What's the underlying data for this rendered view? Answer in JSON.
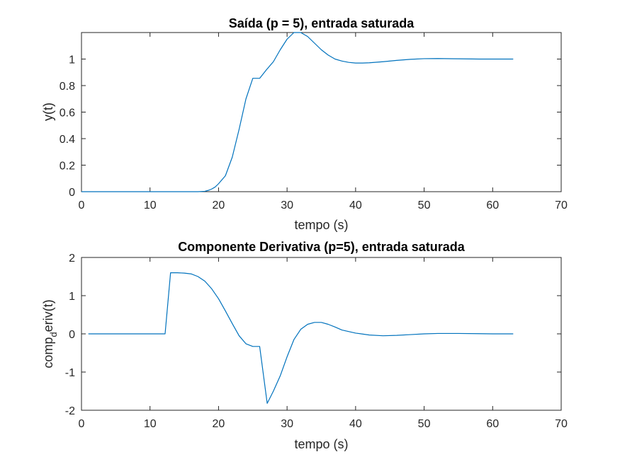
{
  "chart_data": [
    {
      "type": "line",
      "title": "Saída (p = 5), entrada saturada",
      "xlabel": "tempo (s)",
      "ylabel": "y(t)",
      "xlim": [
        0,
        70
      ],
      "ylim": [
        0,
        1.2
      ],
      "xticks": [
        0,
        10,
        20,
        30,
        40,
        50,
        60,
        70
      ],
      "yticks": [
        0,
        0.2,
        0.4,
        0.6,
        0.8,
        1
      ],
      "ytick_labels": [
        "0",
        "0.2",
        "0.4",
        "0.6",
        "0.8",
        "1"
      ],
      "grid": false,
      "series": [
        {
          "color": "#0072BD",
          "x": [
            0,
            5,
            10,
            15,
            17,
            18,
            18.5,
            19,
            19.5,
            20,
            21,
            22,
            23,
            24,
            25,
            26,
            27,
            28,
            29,
            30,
            31,
            32,
            33,
            34,
            35,
            36,
            37,
            38,
            39,
            40,
            41,
            42,
            44,
            46,
            48,
            50,
            52,
            55,
            58,
            60,
            63
          ],
          "y": [
            0,
            0,
            0,
            0,
            0,
            0.003,
            0.01,
            0.02,
            0.035,
            0.06,
            0.12,
            0.26,
            0.47,
            0.7,
            0.855,
            0.855,
            0.92,
            0.98,
            1.07,
            1.15,
            1.2,
            1.2,
            1.17,
            1.12,
            1.07,
            1.03,
            1.0,
            0.985,
            0.975,
            0.97,
            0.97,
            0.972,
            0.98,
            0.99,
            0.998,
            1.003,
            1.004,
            1.002,
            1.0,
            1.0,
            1.0
          ]
        }
      ]
    },
    {
      "type": "line",
      "title": "Componente Derivativa (p=5), entrada saturada",
      "xlabel": "tempo (s)",
      "ylabel_main": "comp",
      "ylabel_sub": "d",
      "ylabel_rest": "eriv(t)",
      "xlim": [
        0,
        70
      ],
      "ylim": [
        -2,
        2
      ],
      "xticks": [
        0,
        10,
        20,
        30,
        40,
        50,
        60,
        70
      ],
      "yticks": [
        -2,
        -1,
        0,
        1,
        2
      ],
      "ytick_labels": [
        "-2",
        "-1",
        "0",
        "1",
        "2"
      ],
      "grid": false,
      "series": [
        {
          "color": "#0072BD",
          "x": [
            1,
            5,
            10,
            12.2,
            13,
            14,
            15,
            16,
            17,
            18,
            19,
            20,
            21,
            22,
            23,
            24,
            25,
            26,
            27.1,
            28,
            29,
            30,
            31,
            32,
            33,
            34,
            35,
            36,
            37,
            38,
            40,
            42,
            44,
            46,
            48,
            50,
            52,
            55,
            58,
            60,
            63
          ],
          "y": [
            0,
            0,
            0,
            0,
            1.6,
            1.6,
            1.59,
            1.57,
            1.5,
            1.38,
            1.18,
            0.92,
            0.6,
            0.27,
            -0.05,
            -0.26,
            -0.33,
            -0.33,
            -1.82,
            -1.5,
            -1.1,
            -0.6,
            -0.15,
            0.12,
            0.25,
            0.3,
            0.3,
            0.25,
            0.18,
            0.1,
            0.02,
            -0.03,
            -0.05,
            -0.04,
            -0.02,
            0,
            0.01,
            0.01,
            0.005,
            0,
            0
          ]
        }
      ]
    }
  ]
}
